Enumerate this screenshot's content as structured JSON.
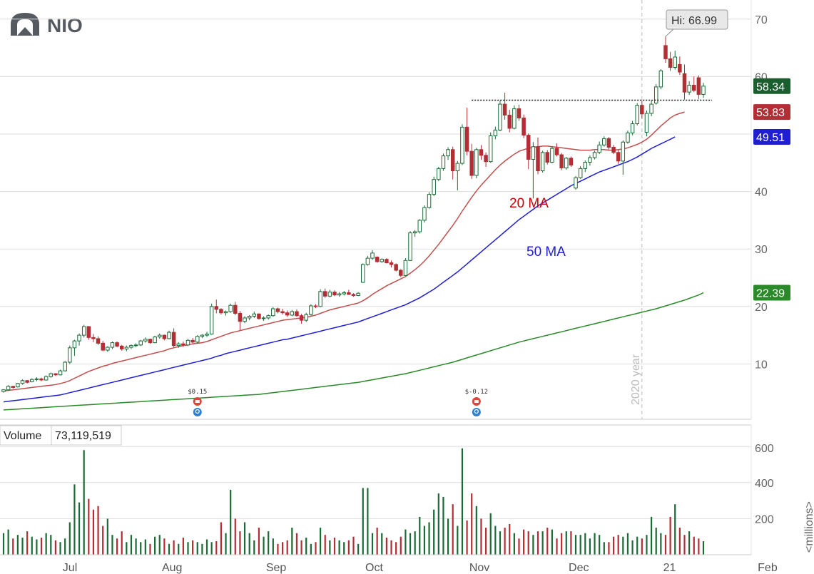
{
  "logo": {
    "text": "NIO"
  },
  "colors": {
    "up": "#1a6b35",
    "down": "#b22e34",
    "ma20": "#c0504d",
    "ma50": "#1f1fd1",
    "ma200": "#2a8a2a",
    "grid": "#dddddd",
    "logo": "#555a60"
  },
  "chart_data": {
    "type": "candlestick",
    "title": "NIO",
    "ylim": [
      0,
      72
    ],
    "price_ticks": [
      10,
      20,
      30,
      40,
      50,
      60,
      70
    ],
    "x_labels": [
      "Jul",
      "Aug",
      "Sep",
      "Oct",
      "Nov",
      "Dec",
      "21",
      "Feb"
    ],
    "resistance_level": 55.9,
    "year_marker_label": "2020 year",
    "high_label": "Hi: 66.99",
    "high_value": 66.99,
    "ma_labels": {
      "ma20": "20 MA",
      "ma50": "50 MA"
    },
    "last_values": {
      "price": "58.34",
      "ma20": "53.83",
      "ma50": "49.51",
      "ma200": "22.39"
    },
    "events": [
      {
        "label": "$0.15",
        "type": "earnings"
      },
      {
        "label": "$-0.12",
        "type": "earnings"
      }
    ],
    "volume": {
      "title": "Volume",
      "value": "73,119,519",
      "ticks": [
        200,
        400,
        600
      ],
      "unit_label": "<millions>"
    },
    "candles": [
      [
        5.2,
        5.6,
        5.0,
        5.5
      ],
      [
        5.5,
        6.3,
        5.4,
        6.1
      ],
      [
        6.1,
        6.2,
        5.7,
        5.9
      ],
      [
        6.0,
        6.7,
        5.9,
        6.6
      ],
      [
        6.6,
        7.3,
        6.4,
        7.1
      ],
      [
        7.1,
        7.2,
        6.6,
        6.8
      ],
      [
        6.9,
        7.5,
        6.8,
        7.3
      ],
      [
        7.3,
        7.7,
        7.0,
        7.4
      ],
      [
        7.4,
        7.6,
        7.0,
        7.2
      ],
      [
        7.2,
        8.0,
        7.1,
        7.8
      ],
      [
        7.8,
        8.5,
        7.6,
        8.3
      ],
      [
        8.3,
        8.4,
        7.9,
        8.1
      ],
      [
        8.1,
        9.0,
        8.0,
        8.8
      ],
      [
        8.8,
        10.5,
        8.7,
        10.3
      ],
      [
        10.3,
        13.2,
        10.0,
        12.8
      ],
      [
        12.8,
        14.2,
        11.4,
        14.0
      ],
      [
        14.0,
        15.3,
        13.2,
        15.0
      ],
      [
        15.0,
        16.8,
        14.6,
        16.5
      ],
      [
        16.5,
        16.6,
        14.2,
        14.6
      ],
      [
        14.6,
        15.2,
        13.8,
        14.4
      ],
      [
        14.4,
        14.8,
        13.3,
        13.6
      ],
      [
        13.6,
        14.0,
        12.2,
        12.4
      ],
      [
        12.4,
        13.1,
        12.1,
        12.9
      ],
      [
        12.9,
        13.9,
        12.6,
        13.7
      ],
      [
        13.7,
        13.9,
        12.9,
        13.1
      ],
      [
        13.1,
        13.3,
        12.3,
        12.6
      ],
      [
        12.6,
        13.2,
        12.2,
        12.9
      ],
      [
        12.9,
        13.4,
        12.6,
        13.2
      ],
      [
        13.2,
        13.6,
        12.9,
        13.3
      ],
      [
        13.3,
        14.2,
        13.1,
        14.0
      ],
      [
        14.0,
        14.6,
        13.7,
        14.3
      ],
      [
        14.3,
        14.4,
        13.5,
        13.7
      ],
      [
        13.7,
        14.9,
        13.6,
        14.7
      ],
      [
        14.7,
        15.3,
        14.4,
        15.0
      ],
      [
        15.0,
        15.1,
        14.1,
        14.4
      ],
      [
        14.4,
        15.8,
        14.3,
        15.5
      ],
      [
        15.5,
        16.2,
        12.9,
        13.2
      ],
      [
        13.2,
        13.8,
        12.8,
        13.5
      ],
      [
        13.5,
        13.9,
        13.0,
        13.3
      ],
      [
        13.3,
        14.4,
        13.1,
        14.1
      ],
      [
        14.1,
        14.5,
        13.6,
        13.8
      ],
      [
        13.8,
        15.0,
        13.6,
        14.8
      ],
      [
        14.8,
        15.2,
        14.5,
        15.0
      ],
      [
        15.0,
        15.6,
        14.7,
        15.2
      ],
      [
        15.2,
        20.5,
        15.1,
        20.0
      ],
      [
        20.0,
        21.2,
        18.8,
        19.5
      ],
      [
        19.5,
        19.7,
        18.6,
        18.9
      ],
      [
        18.9,
        19.3,
        18.4,
        19.1
      ],
      [
        19.1,
        20.5,
        18.9,
        20.2
      ],
      [
        20.2,
        20.8,
        18.5,
        18.8
      ],
      [
        18.8,
        19.2,
        15.8,
        17.4
      ],
      [
        17.4,
        18.3,
        17.1,
        18.0
      ],
      [
        18.0,
        18.5,
        17.6,
        18.3
      ],
      [
        18.3,
        19.1,
        18.0,
        18.7
      ],
      [
        18.7,
        18.8,
        17.7,
        17.9
      ],
      [
        17.9,
        18.3,
        17.5,
        18.0
      ],
      [
        18.0,
        18.6,
        17.7,
        18.4
      ],
      [
        18.4,
        19.9,
        18.2,
        19.6
      ],
      [
        19.6,
        19.8,
        18.8,
        19.1
      ],
      [
        19.1,
        19.6,
        18.6,
        18.9
      ],
      [
        18.9,
        19.3,
        18.2,
        18.5
      ],
      [
        18.5,
        19.4,
        18.3,
        19.1
      ],
      [
        19.1,
        19.5,
        18.2,
        18.4
      ],
      [
        18.4,
        18.7,
        17.0,
        17.6
      ],
      [
        17.6,
        18.9,
        17.3,
        18.6
      ],
      [
        18.6,
        20.4,
        18.4,
        20.1
      ],
      [
        20.1,
        20.4,
        19.7,
        20.0
      ],
      [
        20.0,
        23.0,
        19.9,
        22.6
      ],
      [
        22.6,
        23.1,
        21.5,
        21.8
      ],
      [
        21.8,
        22.9,
        21.6,
        22.5
      ],
      [
        22.5,
        22.8,
        21.8,
        22.0
      ],
      [
        22.0,
        22.5,
        21.7,
        22.2
      ],
      [
        22.2,
        22.7,
        21.9,
        22.4
      ],
      [
        22.4,
        22.9,
        22.0,
        22.1
      ],
      [
        22.1,
        22.3,
        21.7,
        21.9
      ],
      [
        21.9,
        22.5,
        21.8,
        22.3
      ],
      [
        24.2,
        27.5,
        24.1,
        27.3
      ],
      [
        27.3,
        28.8,
        27.1,
        28.4
      ],
      [
        28.4,
        29.8,
        28.1,
        29.3
      ],
      [
        28.6,
        28.7,
        27.6,
        27.8
      ],
      [
        27.8,
        28.4,
        27.6,
        28.2
      ],
      [
        28.2,
        28.4,
        27.5,
        27.6
      ],
      [
        27.6,
        28.0,
        26.8,
        27.3
      ],
      [
        27.3,
        27.5,
        26.1,
        26.3
      ],
      [
        26.3,
        26.5,
        25.1,
        25.4
      ],
      [
        25.4,
        28.4,
        25.3,
        28.0
      ],
      [
        28.0,
        33.1,
        27.9,
        32.8
      ],
      [
        32.8,
        33.3,
        32.1,
        33.0
      ],
      [
        33.0,
        35.2,
        32.7,
        35.0
      ],
      [
        35.0,
        37.6,
        34.6,
        37.2
      ],
      [
        37.2,
        39.9,
        37.0,
        39.5
      ],
      [
        39.5,
        42.6,
        39.2,
        42.1
      ],
      [
        42.1,
        44.3,
        41.8,
        44.0
      ],
      [
        44.0,
        46.6,
        43.6,
        46.2
      ],
      [
        46.2,
        47.7,
        45.5,
        47.3
      ],
      [
        47.3,
        47.8,
        42.1,
        43.6
      ],
      [
        43.6,
        45.3,
        40.2,
        44.9
      ],
      [
        44.9,
        51.7,
        44.6,
        51.2
      ],
      [
        51.2,
        54.6,
        46.3,
        47.0
      ],
      [
        47.0,
        48.3,
        42.2,
        42.8
      ],
      [
        42.8,
        47.6,
        42.3,
        47.3
      ],
      [
        47.3,
        48.1,
        45.5,
        46.3
      ],
      [
        46.3,
        46.8,
        44.3,
        45.2
      ],
      [
        45.2,
        50.3,
        45.0,
        49.7
      ],
      [
        49.7,
        51.3,
        49.1,
        50.7
      ],
      [
        50.7,
        55.8,
        50.5,
        55.2
      ],
      [
        55.2,
        57.2,
        52.5,
        53.3
      ],
      [
        53.3,
        54.2,
        50.3,
        51.0
      ],
      [
        51.0,
        55.0,
        50.8,
        54.4
      ],
      [
        54.4,
        55.1,
        52.3,
        52.8
      ],
      [
        52.8,
        53.4,
        49.3,
        49.8
      ],
      [
        49.8,
        50.1,
        43.9,
        45.6
      ],
      [
        45.6,
        48.6,
        38.8,
        47.8
      ],
      [
        47.8,
        49.4,
        43.0,
        43.6
      ],
      [
        43.6,
        47.1,
        43.3,
        46.8
      ],
      [
        46.8,
        47.2,
        44.7,
        45.1
      ],
      [
        45.1,
        47.9,
        44.9,
        47.5
      ],
      [
        47.5,
        48.4,
        46.1,
        46.4
      ],
      [
        46.4,
        46.7,
        43.7,
        44.1
      ],
      [
        44.1,
        46.0,
        43.8,
        45.8
      ],
      [
        45.8,
        46.1,
        44.3,
        44.6
      ],
      [
        40.6,
        42.7,
        40.3,
        42.4
      ],
      [
        42.4,
        44.4,
        42.2,
        44.0
      ],
      [
        44.0,
        45.4,
        43.4,
        45.1
      ],
      [
        45.1,
        46.3,
        44.5,
        45.9
      ],
      [
        45.9,
        47.1,
        45.6,
        46.8
      ],
      [
        46.8,
        48.7,
        46.5,
        48.1
      ],
      [
        48.1,
        49.6,
        47.8,
        49.2
      ],
      [
        49.2,
        49.5,
        47.3,
        47.7
      ],
      [
        47.7,
        48.1,
        46.5,
        46.8
      ],
      [
        46.8,
        47.2,
        44.8,
        45.3
      ],
      [
        45.3,
        48.9,
        42.9,
        48.6
      ],
      [
        48.6,
        50.6,
        48.3,
        50.2
      ],
      [
        50.2,
        52.3,
        49.8,
        51.8
      ],
      [
        51.8,
        55.4,
        51.5,
        55.0
      ],
      [
        55.0,
        55.8,
        52.7,
        53.5
      ],
      [
        50.3,
        54.1,
        49.6,
        53.6
      ],
      [
        53.6,
        55.8,
        53.1,
        55.2
      ],
      [
        55.4,
        58.7,
        55.1,
        58.2
      ],
      [
        58.2,
        61.3,
        57.8,
        61.0
      ],
      [
        65.4,
        66.99,
        62.4,
        63.1
      ],
      [
        63.1,
        64.3,
        61.0,
        61.6
      ],
      [
        61.6,
        64.5,
        61.2,
        63.4
      ],
      [
        62.1,
        63.5,
        60.3,
        60.8
      ],
      [
        60.5,
        62.1,
        56.0,
        57.3
      ],
      [
        57.3,
        59.2,
        56.8,
        58.5
      ],
      [
        58.5,
        60.0,
        57.3,
        57.6
      ],
      [
        59.8,
        60.2,
        56.1,
        56.9
      ],
      [
        56.9,
        58.9,
        56.3,
        58.34
      ]
    ],
    "ma20": [
      5.3,
      5.4,
      5.5,
      5.6,
      5.7,
      5.8,
      5.9,
      6.0,
      6.1,
      6.2,
      6.3,
      6.4,
      6.6,
      6.8,
      7.1,
      7.5,
      7.9,
      8.3,
      8.7,
      9.0,
      9.3,
      9.6,
      9.8,
      10.1,
      10.3,
      10.5,
      10.7,
      10.9,
      11.1,
      11.3,
      11.5,
      11.7,
      11.9,
      12.1,
      12.3,
      12.6,
      12.8,
      13.0,
      13.2,
      13.3,
      13.5,
      13.6,
      13.7,
      13.9,
      14.2,
      14.5,
      14.8,
      15.1,
      15.4,
      15.6,
      15.8,
      16.0,
      16.2,
      16.4,
      16.6,
      16.8,
      17.0,
      17.2,
      17.4,
      17.6,
      17.7,
      17.8,
      17.9,
      18.0,
      18.1,
      18.3,
      18.5,
      18.8,
      19.1,
      19.4,
      19.6,
      19.8,
      20.0,
      20.2,
      20.4,
      20.6,
      21.0,
      21.5,
      22.1,
      22.6,
      23.1,
      23.6,
      24.0,
      24.4,
      24.8,
      25.2,
      25.8,
      26.4,
      27.1,
      27.9,
      28.8,
      29.8,
      30.8,
      31.9,
      33.0,
      34.1,
      35.3,
      36.6,
      37.8,
      39.0,
      40.1,
      41.1,
      42.0,
      42.9,
      43.8,
      44.6,
      45.3,
      45.9,
      46.5,
      47.0,
      47.3,
      47.5,
      47.7,
      47.8,
      47.9,
      47.9,
      47.8,
      47.7,
      47.6,
      47.5,
      47.4,
      47.3,
      47.2,
      47.2,
      47.2,
      47.3,
      47.3,
      47.3,
      47.2,
      47.2,
      47.3,
      47.4,
      47.6,
      47.9,
      48.2,
      48.6,
      49.1,
      49.8,
      50.6,
      51.4,
      52.1,
      52.8,
      53.3,
      53.6,
      53.83
    ],
    "ma50": [
      3.4,
      3.5,
      3.6,
      3.7,
      3.8,
      3.9,
      4.0,
      4.1,
      4.2,
      4.3,
      4.4,
      4.5,
      4.6,
      4.8,
      5.0,
      5.2,
      5.4,
      5.6,
      5.8,
      6.0,
      6.2,
      6.4,
      6.6,
      6.8,
      7.0,
      7.2,
      7.4,
      7.6,
      7.8,
      8.0,
      8.2,
      8.4,
      8.6,
      8.8,
      9.0,
      9.2,
      9.4,
      9.6,
      9.8,
      10.0,
      10.2,
      10.4,
      10.6,
      10.8,
      11.0,
      11.3,
      11.5,
      11.8,
      12.0,
      12.2,
      12.4,
      12.6,
      12.8,
      13.0,
      13.2,
      13.4,
      13.6,
      13.8,
      14.0,
      14.2,
      14.3,
      14.5,
      14.7,
      14.9,
      15.1,
      15.3,
      15.5,
      15.7,
      15.9,
      16.1,
      16.3,
      16.5,
      16.7,
      16.9,
      17.1,
      17.3,
      17.6,
      17.9,
      18.2,
      18.5,
      18.8,
      19.1,
      19.4,
      19.7,
      20.0,
      20.3,
      20.7,
      21.1,
      21.5,
      22.0,
      22.5,
      23.0,
      23.6,
      24.2,
      24.8,
      25.4,
      26.0,
      26.7,
      27.4,
      28.1,
      28.8,
      29.5,
      30.2,
      30.9,
      31.6,
      32.3,
      33.0,
      33.7,
      34.4,
      35.1,
      35.7,
      36.3,
      36.9,
      37.5,
      38.0,
      38.5,
      39.0,
      39.5,
      40.0,
      40.5,
      41.0,
      41.4,
      41.8,
      42.2,
      42.6,
      43.0,
      43.4,
      43.7,
      44.0,
      44.3,
      44.6,
      44.9,
      45.2,
      45.6,
      46.0,
      46.5,
      47.0,
      47.5,
      47.9,
      48.3,
      48.7,
      49.1,
      49.51
    ],
    "ma200": [
      2.0,
      2.05,
      2.1,
      2.15,
      2.2,
      2.25,
      2.3,
      2.35,
      2.4,
      2.45,
      2.5,
      2.55,
      2.6,
      2.65,
      2.7,
      2.75,
      2.8,
      2.85,
      2.9,
      2.95,
      3.0,
      3.05,
      3.1,
      3.15,
      3.2,
      3.25,
      3.3,
      3.35,
      3.4,
      3.45,
      3.5,
      3.55,
      3.6,
      3.65,
      3.7,
      3.75,
      3.8,
      3.85,
      3.9,
      3.95,
      4.0,
      4.05,
      4.1,
      4.15,
      4.2,
      4.25,
      4.3,
      4.35,
      4.4,
      4.45,
      4.5,
      4.55,
      4.6,
      4.65,
      4.7,
      4.8,
      4.9,
      5.0,
      5.1,
      5.2,
      5.3,
      5.4,
      5.5,
      5.6,
      5.7,
      5.8,
      5.9,
      6.0,
      6.1,
      6.2,
      6.3,
      6.4,
      6.5,
      6.6,
      6.7,
      6.8,
      6.95,
      7.1,
      7.25,
      7.4,
      7.55,
      7.7,
      7.85,
      8.0,
      8.15,
      8.3,
      8.5,
      8.7,
      8.9,
      9.1,
      9.3,
      9.5,
      9.7,
      9.9,
      10.1,
      10.3,
      10.55,
      10.8,
      11.05,
      11.3,
      11.55,
      11.8,
      12.05,
      12.3,
      12.55,
      12.8,
      13.05,
      13.3,
      13.55,
      13.8,
      14.0,
      14.2,
      14.4,
      14.6,
      14.8,
      15.0,
      15.2,
      15.4,
      15.6,
      15.8,
      16.0,
      16.2,
      16.4,
      16.6,
      16.8,
      17.0,
      17.2,
      17.4,
      17.6,
      17.8,
      18.0,
      18.2,
      18.4,
      18.6,
      18.8,
      19.0,
      19.2,
      19.4,
      19.6,
      19.85,
      20.1,
      20.35,
      20.6,
      20.85,
      21.1,
      21.4,
      21.7,
      22.0,
      22.39
    ],
    "volumes": [
      120,
      140,
      90,
      110,
      95,
      130,
      100,
      85,
      95,
      120,
      110,
      80,
      70,
      90,
      180,
      390,
      290,
      580,
      310,
      250,
      270,
      160,
      200,
      110,
      90,
      130,
      70,
      110,
      90,
      70,
      85,
      60,
      100,
      110,
      90,
      60,
      80,
      60,
      95,
      70,
      80,
      70,
      60,
      85,
      70,
      75,
      180,
      120,
      360,
      200,
      130,
      180,
      120,
      80,
      150,
      100,
      130,
      90,
      60,
      70,
      80,
      150,
      120,
      80,
      95,
      60,
      70,
      150,
      110,
      80,
      95,
      80,
      70,
      80,
      100,
      60,
      370,
      370,
      120,
      150,
      120,
      95,
      80,
      70,
      100,
      140,
      120,
      130,
      210,
      160,
      180,
      250,
      340,
      320,
      200,
      280,
      160,
      590,
      190,
      340,
      270,
      200,
      150,
      230,
      160,
      130,
      150,
      170,
      120,
      90,
      140,
      130,
      110,
      130,
      130,
      150,
      140,
      90,
      120,
      130,
      130,
      110,
      110,
      120,
      90,
      120,
      110,
      70,
      70,
      100,
      110,
      100,
      120,
      80,
      100,
      90,
      110,
      210,
      150,
      120,
      110,
      210,
      280,
      150,
      110,
      130,
      100,
      90,
      75
    ]
  }
}
